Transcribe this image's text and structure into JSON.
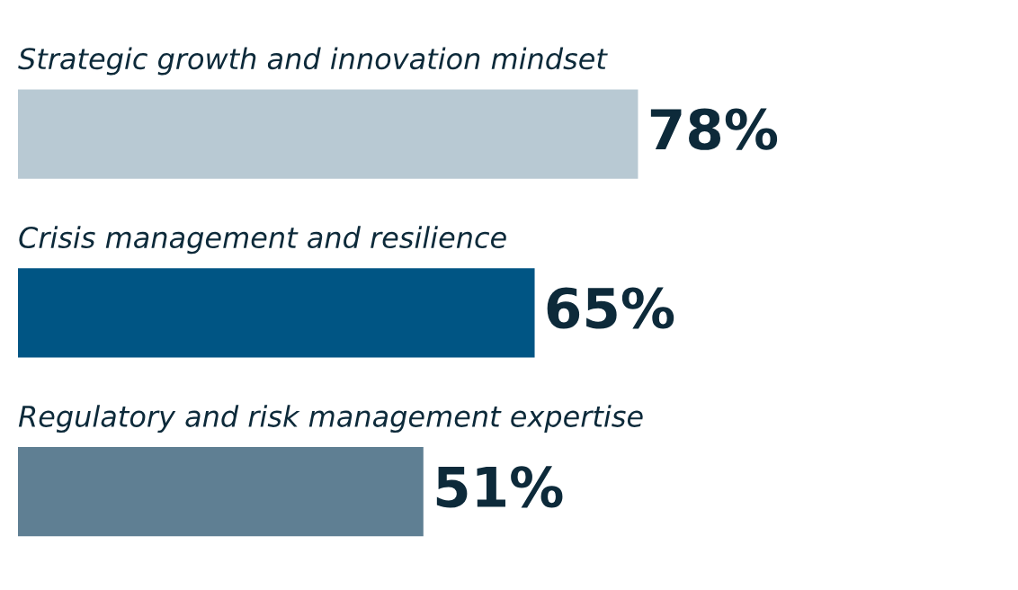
{
  "chart_data": {
    "type": "bar",
    "orientation": "horizontal",
    "categories": [
      "Strategic growth and innovation mindset",
      "Crisis management and resilience",
      "Regulatory and risk management expertise"
    ],
    "values": [
      78,
      65,
      51
    ],
    "colors": [
      "#b8c9d3",
      "#005584",
      "#5f7f93"
    ],
    "value_labels": [
      "78%",
      "65%",
      "51%"
    ],
    "tick_labels": false
  }
}
